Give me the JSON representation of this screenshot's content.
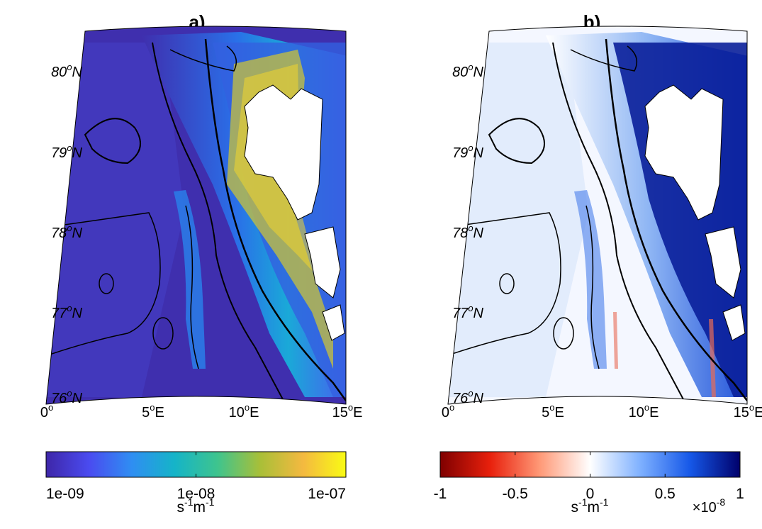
{
  "panels": [
    {
      "id": "a",
      "title": "a)",
      "lat_labels": [
        {
          "deg": "80",
          "hemi": "N"
        },
        {
          "deg": "79",
          "hemi": "N"
        },
        {
          "deg": "78",
          "hemi": "N"
        },
        {
          "deg": "77",
          "hemi": "N"
        },
        {
          "deg": "76",
          "hemi": "N"
        }
      ],
      "lon_labels": [
        {
          "deg": "0",
          "hemi": ""
        },
        {
          "deg": "5",
          "hemi": "E"
        },
        {
          "deg": "10",
          "hemi": "E"
        },
        {
          "deg": "15",
          "hemi": "E"
        }
      ],
      "colorbar": {
        "scale": "log",
        "colors": [
          "#3e26a8",
          "#4a4bf0",
          "#2f8ef2",
          "#15b4c8",
          "#3ec48e",
          "#a9bf38",
          "#f4b940",
          "#f9fb14"
        ],
        "ticks": [
          "1e-09",
          "1e-08",
          "1e-07"
        ],
        "unit": {
          "base1": "s",
          "exp1": "-1",
          "base2": "m",
          "exp2": "-1"
        }
      }
    },
    {
      "id": "b",
      "title": "b)",
      "lat_labels": [
        {
          "deg": "80",
          "hemi": "N"
        },
        {
          "deg": "79",
          "hemi": "N"
        },
        {
          "deg": "78",
          "hemi": "N"
        },
        {
          "deg": "77",
          "hemi": "N"
        },
        {
          "deg": "76",
          "hemi": "N"
        }
      ],
      "lon_labels": [
        {
          "deg": "0",
          "hemi": ""
        },
        {
          "deg": "5",
          "hemi": "E"
        },
        {
          "deg": "10",
          "hemi": "E"
        },
        {
          "deg": "15",
          "hemi": "E"
        }
      ],
      "colorbar": {
        "scale": "linear",
        "colors": [
          "#7f0000",
          "#e8200c",
          "#ff9a78",
          "#ffffff",
          "#7fb1ff",
          "#1658e8",
          "#00006b"
        ],
        "ticks": [
          "-1",
          "-0.5",
          "0",
          "0.5",
          "1"
        ],
        "unit": {
          "base1": "s",
          "exp1": "-1",
          "base2": "m",
          "exp2": "-1"
        },
        "multiplier": {
          "base": "×10",
          "exp": "-8"
        }
      }
    }
  ],
  "colors": {
    "land": "#ffffff",
    "contour": "#000000",
    "a_background": "#3f2fae",
    "a_shelf": "#2f8ef2",
    "a_coastal": "#f9e21a",
    "b_background": "#f2f6ff",
    "b_shelf": "#0a1f9a",
    "b_slope": "#6f9ef0",
    "b_negative": "#e86b55"
  }
}
